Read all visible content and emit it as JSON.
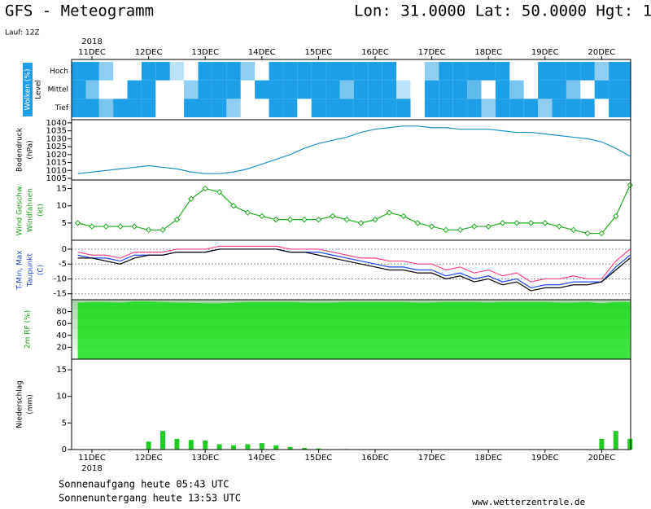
{
  "header": {
    "title": "GFS - Meteogramm",
    "location": "Lon: 31.0000 Lat: 50.0000 Hgt: 1",
    "run": "Lauf: 12Z"
  },
  "footer": {
    "sunrise": "Sonnenaufgang heute 05:43 UTC",
    "sunset": "Sonnenuntergang heute 13:53 UTC",
    "source": "www.wetterzentrale.de"
  },
  "chart_data": [
    {
      "type": "heatmap",
      "ylabel": [
        "Wolken (%)",
        "Level"
      ],
      "year": "2018",
      "categories": [
        null,
        "11DEC",
        null,
        null,
        null,
        "12DEC",
        null,
        null,
        null,
        "13DEC",
        null,
        null,
        null,
        "14DEC",
        null,
        null,
        null,
        "15DEC",
        null,
        null,
        null,
        "16DEC",
        null,
        null,
        null,
        "17DEC",
        null,
        null,
        null,
        "18DEC",
        null,
        null,
        null,
        "19DEC",
        null,
        null,
        null,
        "20DEC",
        null,
        null
      ],
      "color": "#1e9ee6",
      "series": [
        {
          "name": "Hoch",
          "values": [
            100,
            100,
            50,
            0,
            0,
            100,
            100,
            30,
            0,
            100,
            100,
            100,
            50,
            0,
            100,
            100,
            100,
            100,
            100,
            100,
            100,
            100,
            100,
            0,
            0,
            50,
            100,
            100,
            100,
            100,
            100,
            0,
            0,
            100,
            100,
            100,
            100,
            50,
            100,
            100
          ]
        },
        {
          "name": "Mittel",
          "values": [
            100,
            60,
            0,
            0,
            100,
            100,
            0,
            0,
            50,
            100,
            100,
            100,
            0,
            100,
            100,
            100,
            100,
            100,
            100,
            60,
            100,
            100,
            100,
            30,
            0,
            100,
            100,
            100,
            70,
            0,
            100,
            60,
            0,
            100,
            100,
            60,
            0,
            100,
            100,
            100
          ]
        },
        {
          "name": "Tief",
          "values": [
            100,
            100,
            60,
            100,
            100,
            100,
            0,
            0,
            100,
            100,
            100,
            50,
            0,
            0,
            100,
            100,
            0,
            100,
            100,
            100,
            100,
            100,
            100,
            100,
            0,
            100,
            100,
            100,
            100,
            50,
            100,
            100,
            100,
            50,
            100,
            100,
            100,
            0,
            100,
            100
          ]
        }
      ]
    },
    {
      "type": "line",
      "ylabel": [
        "Bodendruck",
        "(hPa)"
      ],
      "color": "#1e90c8",
      "ylim": [
        1004,
        1042
      ],
      "yticks": [
        1005,
        1010,
        1015,
        1020,
        1025,
        1030,
        1035,
        1040
      ],
      "values": [
        1008,
        1009,
        1010,
        1011,
        1012,
        1013,
        1012,
        1011,
        1009,
        1008,
        1008,
        1009,
        1011,
        1014,
        1017,
        1020,
        1024,
        1027,
        1029,
        1031,
        1034,
        1036,
        1037,
        1038,
        1038,
        1037,
        1037,
        1036,
        1036,
        1036,
        1035,
        1034,
        1034,
        1033,
        1032,
        1031,
        1030,
        1028,
        1024,
        1019
      ]
    },
    {
      "type": "line",
      "ylabel": [
        "Wind Geschw.",
        "Windfahnen",
        "(kt)"
      ],
      "color": "#22aa22",
      "markers": true,
      "ylim": [
        0,
        17.5
      ],
      "yticks": [
        5,
        10,
        15
      ],
      "values": [
        5,
        4,
        4,
        4,
        4,
        3,
        3,
        6,
        12,
        15,
        14,
        10,
        8,
        7,
        6,
        6,
        6,
        6,
        7,
        6,
        5,
        6,
        8,
        7,
        5,
        4,
        3,
        3,
        4,
        4,
        5,
        5,
        5,
        5,
        4,
        3,
        2,
        2,
        7,
        16
      ]
    },
    {
      "type": "line",
      "ylabel": [
        "T-Min, Max",
        "Taupunkt",
        "(C)"
      ],
      "grid": true,
      "ylim": [
        -17,
        3
      ],
      "yticks": [
        0,
        -5,
        -10,
        -15
      ],
      "series": [
        {
          "color": "#ff4488",
          "values": [
            -1,
            -2,
            -2,
            -3,
            -1,
            -1,
            -1,
            0,
            0,
            0,
            1,
            1,
            1,
            1,
            1,
            0,
            0,
            0,
            -1,
            -2,
            -3,
            -3,
            -4,
            -4,
            -5,
            -5,
            -7,
            -6,
            -8,
            -7,
            -9,
            -8,
            -11,
            -10,
            -10,
            -9,
            -10,
            -10,
            -4,
            0
          ]
        },
        {
          "color": "#2244ff",
          "values": [
            -2,
            -3,
            -3,
            -4,
            -2,
            -2,
            -2,
            -1,
            -1,
            -1,
            0,
            0,
            0,
            0,
            0,
            -1,
            -1,
            -1,
            -2,
            -3,
            -4,
            -5,
            -6,
            -6,
            -7,
            -7,
            -9,
            -8,
            -10,
            -9,
            -11,
            -10,
            -13,
            -12,
            -12,
            -11,
            -11,
            -11,
            -6,
            -2
          ]
        },
        {
          "color": "#000000",
          "values": [
            -3,
            -3,
            -4,
            -5,
            -3,
            -2,
            -2,
            -1,
            -1,
            -1,
            0,
            0,
            0,
            0,
            0,
            -1,
            -1,
            -2,
            -3,
            -4,
            -5,
            -6,
            -7,
            -7,
            -8,
            -8,
            -10,
            -9,
            -11,
            -10,
            -12,
            -11,
            -14,
            -13,
            -13,
            -12,
            -12,
            -11,
            -7,
            -3
          ]
        }
      ]
    },
    {
      "type": "area",
      "ylabel": [
        "2m RF (%)"
      ],
      "color": "#00dd00",
      "ylim": [
        0,
        100
      ],
      "yticks": [
        20,
        40,
        60,
        80
      ],
      "values": [
        95,
        96,
        96,
        95,
        97,
        97,
        96,
        95,
        95,
        94,
        94,
        95,
        96,
        96,
        96,
        96,
        95,
        95,
        95,
        96,
        96,
        96,
        96,
        96,
        95,
        95,
        96,
        96,
        96,
        95,
        96,
        96,
        96,
        96,
        95,
        95,
        96,
        94,
        96,
        96
      ]
    },
    {
      "type": "bar",
      "ylabel": [
        "Niederschlag",
        "(mm)"
      ],
      "color": "#22cc22",
      "ylim": [
        0,
        17
      ],
      "yticks": [
        0,
        5,
        10,
        15
      ],
      "year": "2018",
      "categories": [
        null,
        "11DEC",
        null,
        null,
        null,
        "12DEC",
        null,
        null,
        null,
        "13DEC",
        null,
        null,
        null,
        "14DEC",
        null,
        null,
        null,
        "15DEC",
        null,
        null,
        null,
        "16DEC",
        null,
        null,
        null,
        "17DEC",
        null,
        null,
        null,
        "18DEC",
        null,
        null,
        null,
        "19DEC",
        null,
        null,
        null,
        "20DEC",
        null,
        null
      ],
      "values": [
        0,
        0,
        0,
        0,
        0,
        1.5,
        3.5,
        2,
        1.8,
        1.7,
        1,
        0.8,
        1,
        1.2,
        0.8,
        0.5,
        0.3,
        0.2,
        0,
        0.1,
        0,
        0,
        0,
        0,
        0,
        0,
        0,
        0,
        0,
        0,
        0,
        0,
        0,
        0,
        0,
        0,
        0,
        2,
        3.5,
        2
      ]
    }
  ]
}
